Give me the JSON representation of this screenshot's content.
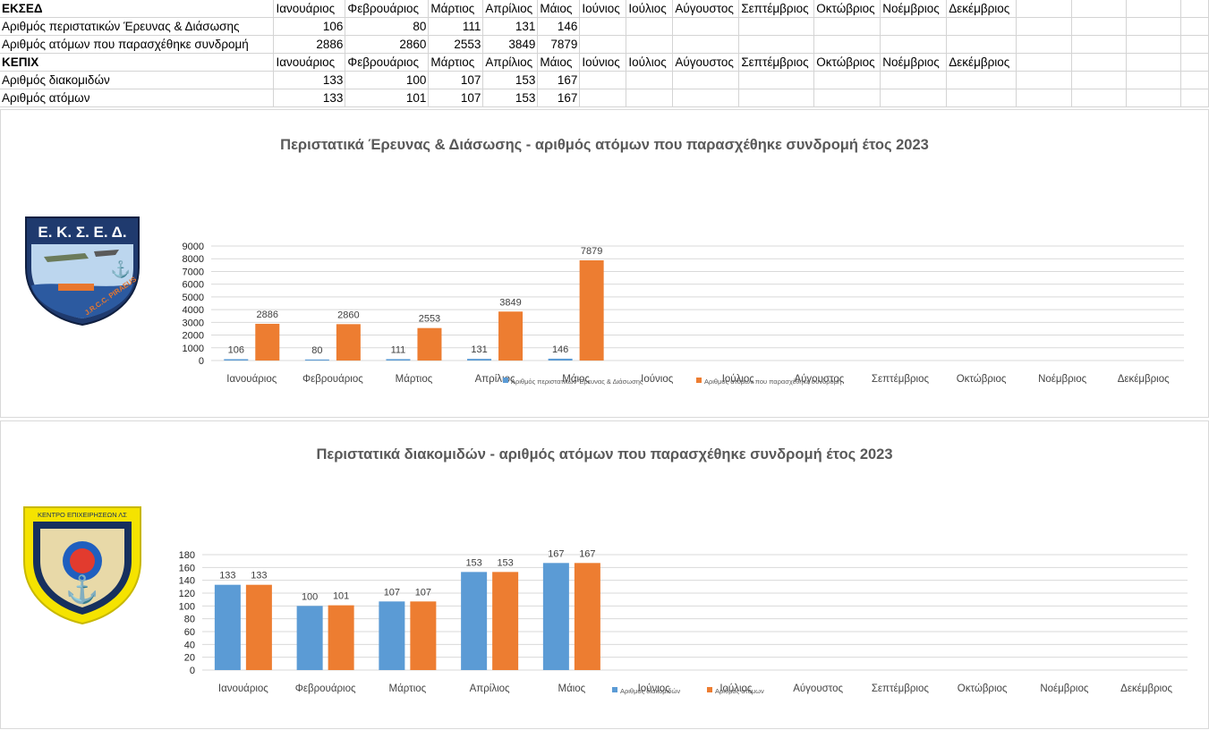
{
  "sheet": {
    "months": [
      "Ιανουάριος",
      "Φεβρουάριος",
      "Μάρτιος",
      "Απρίλιος",
      "Μάιος",
      "Ιούνιος",
      "Ιούλιος",
      "Αύγουστος",
      "Σεπτέμβριος",
      "Οκτώβριος",
      "Νοέμβριος",
      "Δεκέμβριος"
    ],
    "section1": {
      "title": "ΕΚΣΕΔ",
      "rows": [
        {
          "label": "Αριθμός περιστατικών Έρευνας & Διάσωσης",
          "values": [
            "106",
            "80",
            "111",
            "131",
            "146",
            "",
            "",
            "",
            "",
            "",
            "",
            ""
          ]
        },
        {
          "label": "Αριθμός ατόμων που παρασχέθηκε συνδρομή",
          "values": [
            "2886",
            "2860",
            "2553",
            "3849",
            "7879",
            "",
            "",
            "",
            "",
            "",
            "",
            ""
          ]
        }
      ]
    },
    "section2": {
      "title": "ΚΕΠΙΧ",
      "rows": [
        {
          "label": "Αριθμός διακομιδών",
          "values": [
            "133",
            "100",
            "107",
            "153",
            "167",
            "",
            "",
            "",
            "",
            "",
            "",
            ""
          ]
        },
        {
          "label": "Αριθμός ατόμων",
          "values": [
            "133",
            "101",
            "107",
            "153",
            "167",
            "",
            "",
            "",
            "",
            "",
            "",
            ""
          ]
        }
      ]
    }
  },
  "logos": {
    "ekse": {
      "text": "Ε. Κ. Σ. Ε. Δ.",
      "icon": "ekse-badge-icon",
      "sub_text": "J.R.C.C. PIRAEUS"
    },
    "kepix": {
      "text": "ΚΕΝΤΡΟ ΕΠΙΧΕΙΡΗΣΕΩΝ ΛΣ",
      "icon": "kepix-badge-icon"
    }
  },
  "colors": {
    "blue": "#5b9bd5",
    "orange": "#ed7d31",
    "grid": "#d9d9d9",
    "axis_text": "#595959"
  },
  "chart_data": [
    {
      "type": "bar",
      "title": "Περιστατικά Έρευνας & Διάσωσης - αριθμός ατόμων που παρασχέθηκε συνδρομή  έτος 2023",
      "categories": [
        "Ιανουάριος",
        "Φεβρουάριος",
        "Μάρτιος",
        "Απρίλιος",
        "Μάιος",
        "Ιούνιος",
        "Ιούλιος",
        "Αύγουστος",
        "Σεπτέμβριος",
        "Οκτώβριος",
        "Νοέμβριος",
        "Δεκέμβριος"
      ],
      "series": [
        {
          "name": "Αριθμός περιστατικών Έρευνας & Διάσωσης",
          "values": [
            106,
            80,
            111,
            131,
            146,
            null,
            null,
            null,
            null,
            null,
            null,
            null
          ]
        },
        {
          "name": "Αριθμός ατόμων που παρασχέθηκε συνδρομή",
          "values": [
            2886,
            2860,
            2553,
            3849,
            7879,
            null,
            null,
            null,
            null,
            null,
            null,
            null
          ]
        }
      ],
      "ylim": [
        0,
        9000
      ],
      "yticks": [
        0,
        1000,
        2000,
        3000,
        4000,
        5000,
        6000,
        7000,
        8000,
        9000
      ],
      "grid": true,
      "legend": "bottom"
    },
    {
      "type": "bar",
      "title": "Περιστατικά διακομιδών - αριθμός ατόμων που παρασχέθηκε συνδρομή  έτος 2023",
      "categories": [
        "Ιανουάριος",
        "Φεβρουάριος",
        "Μάρτιος",
        "Απρίλιος",
        "Μάιος",
        "Ιούνιος",
        "Ιούλιος",
        "Αύγουστος",
        "Σεπτέμβριος",
        "Οκτώβριος",
        "Νοέμβριος",
        "Δεκέμβριος"
      ],
      "series": [
        {
          "name": "Αριθμός διακομιδών",
          "values": [
            133,
            100,
            107,
            153,
            167,
            null,
            null,
            null,
            null,
            null,
            null,
            null
          ]
        },
        {
          "name": "Αριθμός ατόμων",
          "values": [
            133,
            101,
            107,
            153,
            167,
            null,
            null,
            null,
            null,
            null,
            null,
            null
          ]
        }
      ],
      "ylim": [
        0,
        180
      ],
      "yticks": [
        0,
        20,
        40,
        60,
        80,
        100,
        120,
        140,
        160,
        180
      ],
      "grid": true,
      "legend": "bottom"
    }
  ]
}
